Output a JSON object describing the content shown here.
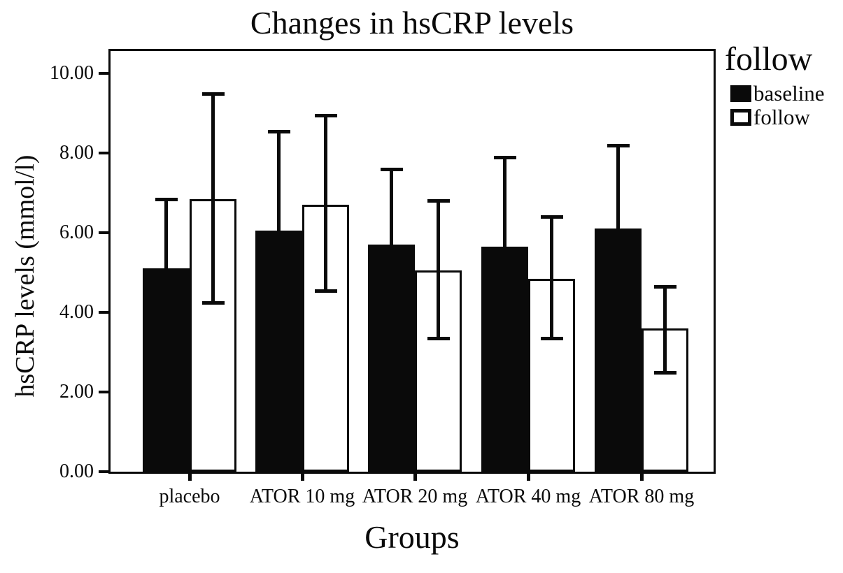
{
  "title": "Changes in hsCRP levels",
  "legend": {
    "title": "follow",
    "items": [
      {
        "label": "baseline",
        "style": "filled",
        "fill": "#0a0a0a"
      },
      {
        "label": "follow",
        "style": "outlined",
        "fill": "#ffffff"
      }
    ]
  },
  "colors": {
    "bar_baseline": "#0a0a0a",
    "bar_follow": "#ffffff",
    "axis": "#0a0a0a",
    "background": "#ffffff"
  },
  "chart_data": {
    "type": "bar",
    "title": "Changes in hsCRP levels",
    "xlabel": "Groups",
    "ylabel": "hsCRP levels (mmol/l)",
    "ylim": [
      0,
      10.6
    ],
    "y_tick_values": [
      0,
      2,
      4,
      6,
      8,
      10
    ],
    "y_tick_labels": [
      "0.00",
      "2.00",
      "4.00",
      "6.00",
      "8.00",
      "10.00"
    ],
    "grid": false,
    "legend_position": "right",
    "categories": [
      "placebo",
      "ATOR 10 mg",
      "ATOR 20 mg",
      "ATOR 40 mg",
      "ATOR 80 mg"
    ],
    "series": [
      {
        "name": "baseline",
        "style": "filled",
        "values": [
          5.1,
          6.05,
          5.7,
          5.65,
          6.1
        ],
        "error_upper": [
          6.85,
          8.55,
          7.6,
          7.9,
          8.2
        ]
      },
      {
        "name": "follow",
        "style": "outlined",
        "values": [
          6.85,
          6.7,
          5.05,
          4.85,
          3.6
        ],
        "error_lower": [
          4.25,
          4.55,
          3.35,
          3.35,
          2.5
        ],
        "error_upper": [
          9.5,
          8.95,
          6.8,
          6.4,
          4.65
        ]
      }
    ]
  }
}
